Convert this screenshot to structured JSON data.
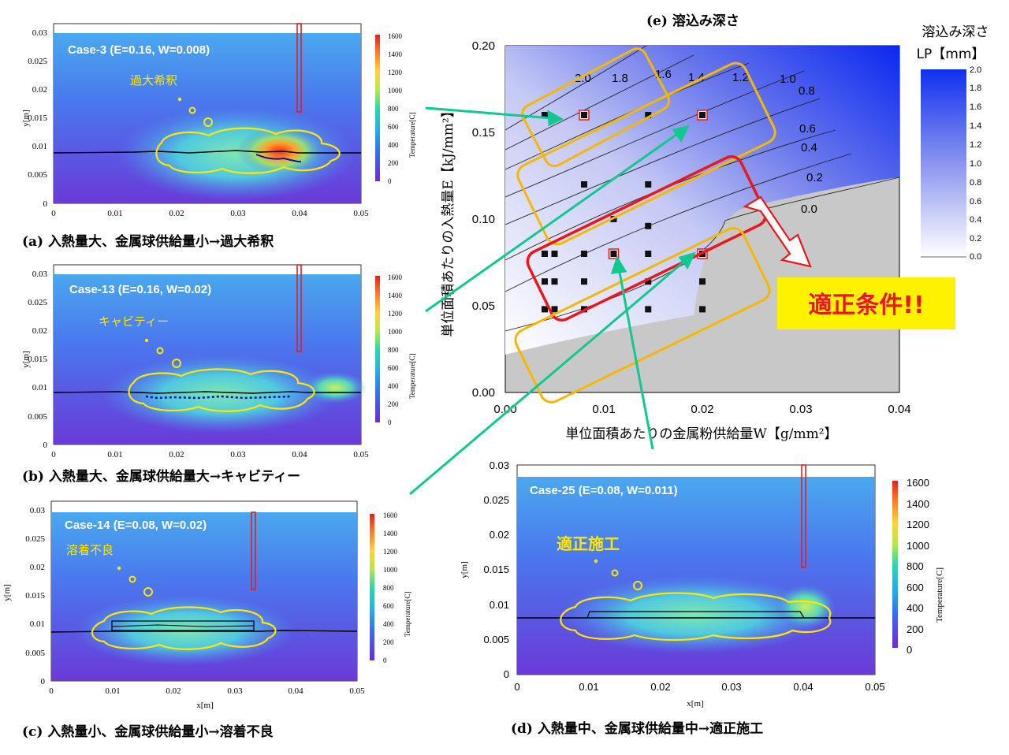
{
  "panels": [
    {
      "id": "a",
      "case_label": "Case-3 (E=0.16, W=0.008)",
      "note": "過大希釈",
      "caption": "(a)   入熱量大、金属球供給量小→過大希釈",
      "y_label": "y[m]",
      "x_label": "",
      "x_ticks": [
        "0",
        "0.01",
        "0.02",
        "0.03",
        "0.04",
        "0.05"
      ],
      "y_ticks": [
        "0",
        "0.005",
        "0.01",
        "0.015",
        "0.02",
        "0.025",
        "0.03"
      ],
      "colorbar_label": "Temperature[C]",
      "colorbar_ticks": [
        "0",
        "200",
        "400",
        "600",
        "800",
        "1000",
        "1200",
        "1400",
        "1600"
      ]
    },
    {
      "id": "b",
      "case_label": "Case-13 (E=0.16, W=0.02)",
      "note": "キャビティー",
      "caption": "(b)   入熱量大、金属球供給量大→キャビティー",
      "y_label": "y[m]",
      "x_label": "",
      "x_ticks": [
        "0",
        "0.01",
        "0.02",
        "0.03",
        "0.04",
        "0.05"
      ],
      "y_ticks": [
        "0",
        "0.005",
        "0.01",
        "0.015",
        "0.02",
        "0.025",
        "0.03"
      ],
      "colorbar_label": "Temperature[C]",
      "colorbar_ticks": [
        "0",
        "200",
        "400",
        "600",
        "800",
        "1000",
        "1200",
        "1400",
        "1600"
      ]
    },
    {
      "id": "c",
      "case_label": "Case-14 (E=0.08, W=0.02)",
      "note": "溶着不良",
      "caption": "(c)   入熱量小、金属球供給量小→溶着不良",
      "y_label": "y[m]",
      "x_label": "x[m]",
      "x_ticks": [
        "0",
        "0.01",
        "0.02",
        "0.03",
        "0.04",
        "0.05"
      ],
      "y_ticks": [
        "0",
        "0.005",
        "0.01",
        "0.015",
        "0.02",
        "0.025",
        "0.03"
      ],
      "colorbar_label": "Temperature[C]",
      "colorbar_ticks": [
        "0",
        "200",
        "400",
        "600",
        "800",
        "1000",
        "1200",
        "1400",
        "1600"
      ]
    },
    {
      "id": "d",
      "case_label": "Case-25 (E=0.08, W=0.011)",
      "note": "適正施工",
      "caption": "(d)   入熱量中、金属球供給量中→適正施工",
      "y_label": "y[m]",
      "x_label": "x[m]",
      "x_ticks": [
        "0",
        "0.01",
        "0.02",
        "0.03",
        "0.04",
        "0.05"
      ],
      "y_ticks": [
        "0",
        "0.005",
        "0.01",
        "0.015",
        "0.02",
        "0.025",
        "0.03"
      ],
      "colorbar_label": "Temperature[C]",
      "colorbar_ticks": [
        "0",
        "200",
        "400",
        "600",
        "800",
        "1000",
        "1200",
        "1400",
        "1600"
      ]
    }
  ],
  "chart_data": {
    "type": "contour",
    "title": "(e)   溶込み深さ",
    "xlabel": "単位面積あたりの金属粉供給量W【g/mm²】",
    "ylabel": "単位面積あたりの入熱量E【kJ/mm²】",
    "xlim": [
      0,
      0.04
    ],
    "ylim": [
      0,
      0.2
    ],
    "x_ticks": [
      "0.00",
      "0.01",
      "0.02",
      "0.03",
      "0.04"
    ],
    "y_ticks": [
      "0.00",
      "0.05",
      "0.10",
      "0.15",
      "0.20"
    ],
    "colorbar": {
      "title_line1": "溶込み深さ",
      "title_line2": "LP【mm】",
      "ticks": [
        "0.0",
        "0.2",
        "0.4",
        "0.6",
        "0.8",
        "1.0",
        "1.2",
        "1.4",
        "1.6",
        "1.8",
        "2.0"
      ]
    },
    "contour_labels": [
      "2.0",
      "1.8",
      "1.6",
      "1.4",
      "1.2",
      "1.0",
      "0.8",
      "0.6",
      "0.4",
      "0.2",
      "0.0"
    ],
    "sample_points": [
      {
        "x": 0.004,
        "y": 0.16
      },
      {
        "x": 0.008,
        "y": 0.16,
        "highlight": true
      },
      {
        "x": 0.0145,
        "y": 0.16
      },
      {
        "x": 0.02,
        "y": 0.16,
        "highlight": true
      },
      {
        "x": 0.008,
        "y": 0.12
      },
      {
        "x": 0.0145,
        "y": 0.12
      },
      {
        "x": 0.011,
        "y": 0.1
      },
      {
        "x": 0.0145,
        "y": 0.096
      },
      {
        "x": 0.004,
        "y": 0.08
      },
      {
        "x": 0.005,
        "y": 0.08
      },
      {
        "x": 0.008,
        "y": 0.08
      },
      {
        "x": 0.011,
        "y": 0.08,
        "highlight": true
      },
      {
        "x": 0.0145,
        "y": 0.08
      },
      {
        "x": 0.02,
        "y": 0.08,
        "highlight": true
      },
      {
        "x": 0.004,
        "y": 0.064
      },
      {
        "x": 0.005,
        "y": 0.064
      },
      {
        "x": 0.008,
        "y": 0.064
      },
      {
        "x": 0.0145,
        "y": 0.064
      },
      {
        "x": 0.02,
        "y": 0.064
      },
      {
        "x": 0.004,
        "y": 0.048
      },
      {
        "x": 0.005,
        "y": 0.048
      },
      {
        "x": 0.008,
        "y": 0.048
      },
      {
        "x": 0.0145,
        "y": 0.048
      },
      {
        "x": 0.02,
        "y": 0.048
      }
    ],
    "annotation": "適正条件!!"
  }
}
